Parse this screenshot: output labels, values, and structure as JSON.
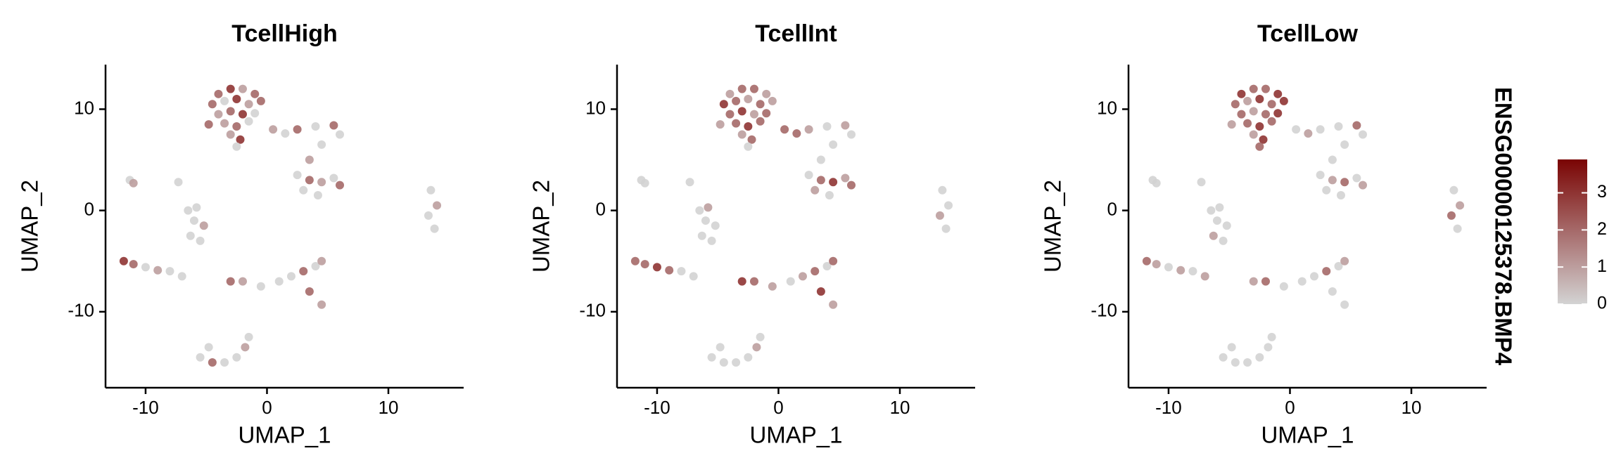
{
  "chart_data": [
    {
      "type": "scatter",
      "title": "TcellHigh",
      "xlabel": "UMAP_1",
      "ylabel": "UMAP_2",
      "xlim": [
        -13.3,
        16.2
      ],
      "ylim": [
        -17.5,
        14.4
      ],
      "xticks": [
        -10,
        0,
        10
      ],
      "yticks": [
        -10,
        0,
        10
      ],
      "x": [
        -4,
        -3,
        -2,
        -1,
        -4.5,
        -3.5,
        -2.5,
        -1.5,
        -0.5,
        -4,
        -3,
        -2,
        -1,
        -4.8,
        -3.5,
        -2.5,
        -1.5,
        -3,
        -2.2,
        -2.5,
        0.5,
        1.5,
        2.5,
        4,
        5.5,
        6,
        4.5,
        3.5,
        2.5,
        3.5,
        4.5,
        5.5,
        6,
        3,
        4.2,
        13.5,
        14,
        13.3,
        13.8,
        -11.3,
        -11,
        -7.3,
        -6.5,
        -5.8,
        -6,
        -5.2,
        -6.3,
        -5.5,
        -11.8,
        -11,
        -10,
        -9,
        -8,
        -7,
        -3,
        -2,
        -0.5,
        1,
        2,
        3,
        4,
        4.5,
        3.5,
        4.5,
        -5.5,
        -4.5,
        -3.5,
        -2.5,
        -1.8,
        -1.5,
        -4.8
      ],
      "y": [
        11.5,
        12,
        12,
        11.5,
        10.5,
        10.8,
        11,
        10.5,
        10.8,
        9.5,
        9.8,
        9.5,
        9.6,
        8.5,
        8.6,
        8.3,
        8.8,
        7.5,
        7,
        6.3,
        8,
        7.6,
        8,
        8.3,
        8.4,
        7.5,
        6.5,
        5,
        3.5,
        3,
        2.8,
        3.2,
        2.5,
        2,
        1.5,
        2,
        0.5,
        -0.5,
        -1.8,
        3,
        2.7,
        2.8,
        0,
        0.3,
        -1,
        -1.5,
        -2.5,
        -3,
        -5,
        -5.3,
        -5.6,
        -5.9,
        -6,
        -6.5,
        -7,
        -7,
        -7.5,
        -7,
        -6.5,
        -6,
        -5.5,
        -5,
        -8,
        -9.3,
        -14.5,
        -15,
        -15,
        -14.5,
        -13.5,
        -12.5,
        -13.5
      ],
      "values": [
        2,
        3,
        1,
        2,
        2,
        0,
        3,
        1,
        2,
        1,
        2,
        3,
        0,
        2,
        1,
        2,
        0,
        1,
        3,
        0,
        1,
        0,
        2,
        0,
        2,
        0,
        0,
        1,
        0,
        2,
        1,
        0,
        2,
        0,
        0,
        0,
        1,
        0,
        0,
        0,
        1,
        0,
        0,
        0,
        0,
        1,
        0,
        0,
        3,
        2,
        0,
        1,
        0,
        0,
        2,
        1,
        0,
        0,
        0,
        2,
        0,
        1,
        2,
        1,
        0,
        2,
        0,
        0,
        1,
        0,
        0
      ]
    },
    {
      "type": "scatter",
      "title": "TcellInt",
      "xlabel": "UMAP_1",
      "ylabel": "UMAP_2",
      "xlim": [
        -13.3,
        16.2
      ],
      "ylim": [
        -17.5,
        14.4
      ],
      "xticks": [
        -10,
        0,
        10
      ],
      "yticks": [
        -10,
        0,
        10
      ],
      "x": [
        -4,
        -3,
        -2,
        -1,
        -4.5,
        -3.5,
        -2.5,
        -1.5,
        -0.5,
        -4,
        -3,
        -2,
        -1,
        -4.8,
        -3.5,
        -2.5,
        -1.5,
        -3,
        -2.2,
        -2.5,
        0.5,
        1.5,
        2.5,
        4,
        5.5,
        6,
        4.5,
        3.5,
        2.5,
        3.5,
        4.5,
        5.5,
        6,
        3,
        4.2,
        13.5,
        14,
        13.3,
        13.8,
        -11.3,
        -11,
        -7.3,
        -6.5,
        -5.8,
        -6,
        -5.2,
        -6.3,
        -5.5,
        -11.8,
        -11,
        -10,
        -9,
        -8,
        -7,
        -3,
        -2,
        -0.5,
        1,
        2,
        3,
        4,
        4.5,
        3.5,
        4.5,
        -5.5,
        -4.5,
        -3.5,
        -2.5,
        -1.8,
        -1.5,
        -4.8
      ],
      "y": [
        11.5,
        12,
        12,
        11.5,
        10.5,
        10.8,
        11,
        10.5,
        10.8,
        9.5,
        9.8,
        9.5,
        9.6,
        8.5,
        8.6,
        8.3,
        8.8,
        7.5,
        7,
        6.3,
        8,
        7.6,
        8,
        8.3,
        8.4,
        7.5,
        6.5,
        5,
        3.5,
        3,
        2.8,
        3.2,
        2.5,
        2,
        1.5,
        2,
        0.5,
        -0.5,
        -1.8,
        3,
        2.7,
        2.8,
        0,
        0.3,
        -1,
        -1.5,
        -2.5,
        -3,
        -5,
        -5.3,
        -5.6,
        -5.9,
        -6,
        -6.5,
        -7,
        -7,
        -7.5,
        -7,
        -6.5,
        -6,
        -5.5,
        -5,
        -8,
        -9.3,
        -14.5,
        -15,
        -15,
        -14.5,
        -13.5,
        -12.5,
        -13.5
      ],
      "values": [
        1,
        2,
        2,
        1,
        3,
        2,
        1,
        2,
        1,
        2,
        3,
        1,
        2,
        1,
        2,
        3,
        2,
        1,
        2,
        0,
        2,
        2,
        1,
        0,
        1,
        0,
        0,
        0,
        0,
        2,
        3,
        1,
        2,
        1,
        0,
        0,
        0,
        1,
        0,
        0,
        0,
        0,
        0,
        1,
        0,
        0,
        0,
        0,
        2,
        2,
        3,
        2,
        0,
        0,
        3,
        2,
        1,
        0,
        1,
        2,
        0,
        2,
        3,
        1,
        0,
        0,
        0,
        0,
        1,
        0,
        0
      ]
    },
    {
      "type": "scatter",
      "title": "TcellLow",
      "xlabel": "UMAP_1",
      "ylabel": "UMAP_2",
      "xlim": [
        -13.3,
        16.2
      ],
      "ylim": [
        -17.5,
        14.4
      ],
      "xticks": [
        -10,
        0,
        10
      ],
      "yticks": [
        -10,
        0,
        10
      ],
      "x": [
        -4,
        -3,
        -2,
        -1,
        -4.5,
        -3.5,
        -2.5,
        -1.5,
        -0.5,
        -4,
        -3,
        -2,
        -1,
        -4.8,
        -3.5,
        -2.5,
        -1.5,
        -3,
        -2.2,
        -2.5,
        0.5,
        1.5,
        2.5,
        4,
        5.5,
        6,
        4.5,
        3.5,
        2.5,
        3.5,
        4.5,
        5.5,
        6,
        3,
        4.2,
        13.5,
        14,
        13.3,
        13.8,
        -11.3,
        -11,
        -7.3,
        -6.5,
        -5.8,
        -6,
        -5.2,
        -6.3,
        -5.5,
        -11.8,
        -11,
        -10,
        -9,
        -8,
        -7,
        -3,
        -2,
        -0.5,
        1,
        2,
        3,
        4,
        4.5,
        3.5,
        4.5,
        -5.5,
        -4.5,
        -3.5,
        -2.5,
        -1.8,
        -1.5,
        -4.8
      ],
      "y": [
        11.5,
        12,
        12,
        11.5,
        10.5,
        10.8,
        11,
        10.5,
        10.8,
        9.5,
        9.8,
        9.5,
        9.6,
        8.5,
        8.6,
        8.3,
        8.8,
        7.5,
        7,
        6.3,
        8,
        7.6,
        8,
        8.3,
        8.4,
        7.5,
        6.5,
        5,
        3.5,
        3,
        2.8,
        3.2,
        2.5,
        2,
        1.5,
        2,
        0.5,
        -0.5,
        -1.8,
        3,
        2.7,
        2.8,
        0,
        0.3,
        -1,
        -1.5,
        -2.5,
        -3,
        -5,
        -5.3,
        -5.6,
        -5.9,
        -6,
        -6.5,
        -7,
        -7,
        -7.5,
        -7,
        -6.5,
        -6,
        -5.5,
        -5,
        -8,
        -9.3,
        -14.5,
        -15,
        -15,
        -14.5,
        -13.5,
        -12.5,
        -13.5
      ],
      "values": [
        3,
        2,
        2,
        3,
        2,
        1,
        3,
        2,
        3,
        2,
        1,
        2,
        3,
        1,
        2,
        3,
        2,
        1,
        3,
        2,
        0,
        1,
        0,
        0,
        2,
        0,
        0,
        0,
        0,
        1,
        2,
        0,
        1,
        0,
        0,
        0,
        1,
        2,
        0,
        0,
        0,
        0,
        0,
        0,
        0,
        0,
        1,
        0,
        2,
        1,
        0,
        1,
        0,
        1,
        1,
        2,
        0,
        0,
        0,
        2,
        0,
        1,
        0,
        0,
        0,
        0,
        0,
        0,
        0,
        0,
        0
      ]
    }
  ],
  "colorbar": {
    "title": "ENSG00000125378.BMP4",
    "lim": [
      0,
      3.9
    ],
    "ticks": [
      0,
      1,
      2,
      3
    ],
    "low_color": "#d3d3d3",
    "high_color": "#7a0403"
  }
}
